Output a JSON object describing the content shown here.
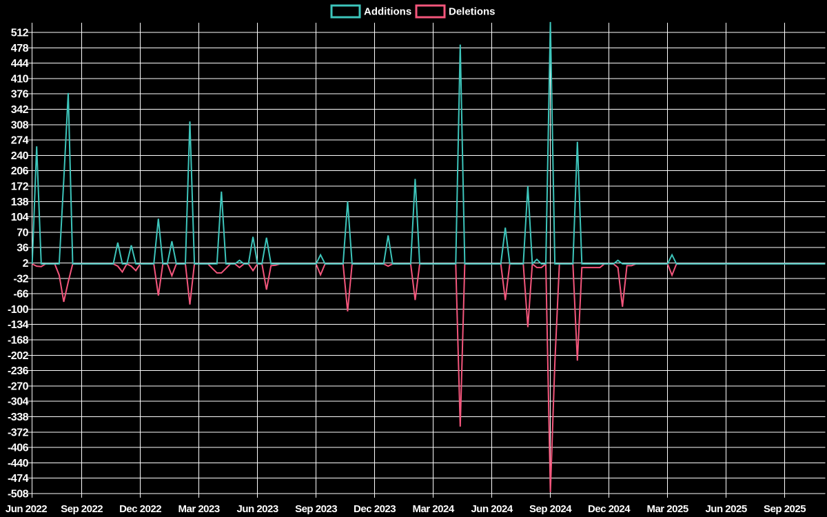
{
  "chart_data": {
    "type": "line",
    "title": "",
    "legend": [
      {
        "name": "Additions",
        "color": "#3dc5bb"
      },
      {
        "name": "Deletions",
        "color": "#f4567c"
      }
    ],
    "background_color": "#000000",
    "grid_color": "#ffffff",
    "grid": true,
    "legend_position": "top-center",
    "xlabel": "",
    "ylabel": "",
    "ylim": [
      -508,
      512
    ],
    "y_ticks": [
      512,
      478,
      444,
      410,
      376,
      342,
      308,
      274,
      240,
      206,
      172,
      138,
      104,
      70,
      36,
      2,
      -32,
      -66,
      -100,
      -134,
      -168,
      -202,
      -236,
      -270,
      -304,
      -338,
      -372,
      -406,
      -440,
      -474,
      -508
    ],
    "x_tick_labels": [
      "Jun 2022",
      "Sep 2022",
      "Dec 2022",
      "Mar 2023",
      "Jun 2023",
      "Sep 2023",
      "Dec 2023",
      "Mar 2024",
      "Jun 2024",
      "Sep 2024",
      "Dec 2024",
      "Mar 2025",
      "Jun 2025",
      "Sep 2025"
    ],
    "x_tick_weeks": [
      -2,
      11,
      24,
      37,
      50,
      63,
      76,
      89,
      102,
      115,
      128,
      141,
      154,
      167
    ],
    "x_unit": "week",
    "total_weeks": 176,
    "baseline_value": 0,
    "series": [
      {
        "name": "Additions",
        "color": "#3dc5bb",
        "default_value": 0,
        "spikes": [
          [
            1,
            260
          ],
          [
            7,
            185
          ],
          [
            8,
            378
          ],
          [
            19,
            47
          ],
          [
            22,
            41
          ],
          [
            28,
            100
          ],
          [
            31,
            50
          ],
          [
            35,
            315
          ],
          [
            42,
            160
          ],
          [
            46,
            8
          ],
          [
            49,
            60
          ],
          [
            52,
            58
          ],
          [
            64,
            20
          ],
          [
            70,
            138
          ],
          [
            79,
            63
          ],
          [
            85,
            188
          ],
          [
            95,
            485
          ],
          [
            105,
            80
          ],
          [
            110,
            172
          ],
          [
            112,
            10
          ],
          [
            115,
            535
          ],
          [
            121,
            270
          ],
          [
            130,
            8
          ],
          [
            142,
            20
          ]
        ]
      },
      {
        "name": "Deletions",
        "color": "#f4567c",
        "default_value": 0,
        "spikes": [
          [
            1,
            -5
          ],
          [
            2,
            -6
          ],
          [
            6,
            -25
          ],
          [
            7,
            -84
          ],
          [
            8,
            -40
          ],
          [
            19,
            -5
          ],
          [
            20,
            -18
          ],
          [
            22,
            -5
          ],
          [
            23,
            -15
          ],
          [
            28,
            -70
          ],
          [
            31,
            -26
          ],
          [
            35,
            -90
          ],
          [
            40,
            -10
          ],
          [
            41,
            -20
          ],
          [
            42,
            -20
          ],
          [
            43,
            -10
          ],
          [
            46,
            -8
          ],
          [
            49,
            -15
          ],
          [
            52,
            -57
          ],
          [
            53,
            -4
          ],
          [
            54,
            -3
          ],
          [
            64,
            -24
          ],
          [
            70,
            -105
          ],
          [
            79,
            -5
          ],
          [
            85,
            -80
          ],
          [
            95,
            -360
          ],
          [
            105,
            -80
          ],
          [
            110,
            -140
          ],
          [
            112,
            -8
          ],
          [
            113,
            -8
          ],
          [
            115,
            -505
          ],
          [
            116,
            -219
          ],
          [
            121,
            -214
          ],
          [
            122,
            -8
          ],
          [
            123,
            -8
          ],
          [
            124,
            -8
          ],
          [
            125,
            -8
          ],
          [
            126,
            -8
          ],
          [
            130,
            -8
          ],
          [
            131,
            -95
          ],
          [
            132,
            -4
          ],
          [
            133,
            -4
          ],
          [
            142,
            -25
          ]
        ]
      }
    ]
  }
}
